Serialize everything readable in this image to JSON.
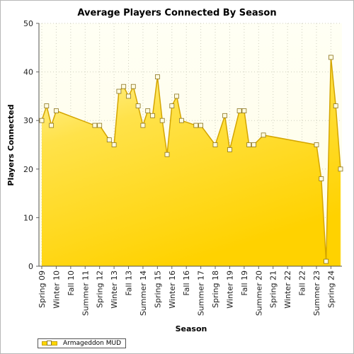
{
  "chart_data": {
    "type": "area",
    "title": "Average Players Connected By Season",
    "xlabel": "Season",
    "ylabel": "Players Connected",
    "ylim": [
      0,
      50
    ],
    "yticks": [
      0,
      10,
      20,
      30,
      40,
      50
    ],
    "xtick_labels": [
      "Spring 09",
      "Winter 10",
      "Fall 10",
      "Summer 11",
      "Spring 12",
      "Winter 13",
      "Fall 13",
      "Summer 14",
      "Spring 15",
      "Winter 16",
      "Fall 16",
      "Summer 17",
      "Spring 18",
      "Winter 19",
      "Fall 19",
      "Summer 20",
      "Spring 21",
      "Winter 22",
      "Fall 22",
      "Summer 23",
      "Spring 24"
    ],
    "grid": true,
    "legend_position": "bottom-left",
    "colors": {
      "area_top": "#fffde0",
      "area_bottom": "#ffd800",
      "line": "#d4a500",
      "plot_bg": "#fffff2",
      "grid": "#d8d8c8"
    },
    "series": [
      {
        "name": "Armageddon MUD",
        "points": [
          {
            "x": "Spring 09",
            "y": 30
          },
          {
            "x": "Summer 09",
            "y": 33
          },
          {
            "x": "Fall 09",
            "y": 29
          },
          {
            "x": "Winter 10",
            "y": 32
          },
          {
            "x": "Winter 12",
            "y": 29
          },
          {
            "x": "Spring 12",
            "y": 29
          },
          {
            "x": "Fall 12",
            "y": 26
          },
          {
            "x": "Winter 13",
            "y": 25
          },
          {
            "x": "Spring 13",
            "y": 36
          },
          {
            "x": "Summer 13",
            "y": 37
          },
          {
            "x": "Fall 13",
            "y": 35
          },
          {
            "x": "Winter 14",
            "y": 37
          },
          {
            "x": "Spring 14",
            "y": 33
          },
          {
            "x": "Summer 14",
            "y": 29
          },
          {
            "x": "Fall 14",
            "y": 32
          },
          {
            "x": "Winter 15",
            "y": 31
          },
          {
            "x": "Spring 15",
            "y": 39
          },
          {
            "x": "Summer 15",
            "y": 30
          },
          {
            "x": "Fall 15",
            "y": 23
          },
          {
            "x": "Winter 16",
            "y": 33
          },
          {
            "x": "Spring 16",
            "y": 35
          },
          {
            "x": "Summer 16",
            "y": 30
          },
          {
            "x": "Spring 17",
            "y": 29
          },
          {
            "x": "Summer 17",
            "y": 29
          },
          {
            "x": "Spring 18",
            "y": 25
          },
          {
            "x": "Fall 18",
            "y": 31
          },
          {
            "x": "Winter 19",
            "y": 24
          },
          {
            "x": "Summer 19",
            "y": 32
          },
          {
            "x": "Fall 19",
            "y": 32
          },
          {
            "x": "Winter 20",
            "y": 25
          },
          {
            "x": "Spring 20",
            "y": 25
          },
          {
            "x": "Fall 20",
            "y": 27
          },
          {
            "x": "Summer 23",
            "y": 25
          },
          {
            "x": "Fall 23",
            "y": 18
          },
          {
            "x": "Winter 24",
            "y": 1
          },
          {
            "x": "Spring 24",
            "y": 43
          },
          {
            "x": "Summer 24",
            "y": 33
          },
          {
            "x": "Fall 24",
            "y": 20
          }
        ]
      }
    ]
  }
}
